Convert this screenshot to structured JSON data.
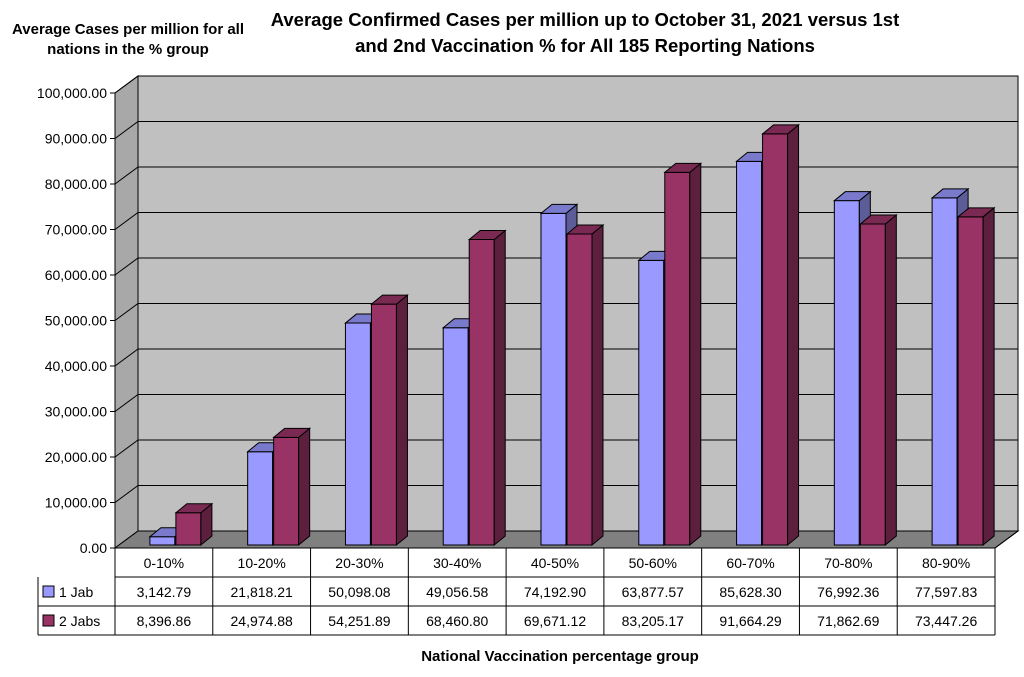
{
  "chart_data": {
    "type": "bar",
    "title": "Average Confirmed Cases per million up to October 31, 2021 versus 1st and 2nd Vaccination % for All 185 Reporting Nations",
    "ylabel": "Average Cases per million for all nations in the % group",
    "xlabel": "National Vaccination percentage group",
    "categories": [
      "0-10%",
      "10-20%",
      "20-30%",
      "30-40%",
      "40-50%",
      "50-60%",
      "60-70%",
      "70-80%",
      "80-90%"
    ],
    "series": [
      {
        "name": "1 Jab",
        "values": [
          3142.79,
          21818.21,
          50098.08,
          49056.58,
          74192.9,
          63877.57,
          85628.3,
          76992.36,
          77597.83
        ],
        "labels": [
          "3,142.79",
          "21,818.21",
          "50,098.08",
          "49,056.58",
          "74,192.90",
          "63,877.57",
          "85,628.30",
          "76,992.36",
          "77,597.83"
        ],
        "color": "#9999ff"
      },
      {
        "name": "2 Jabs",
        "values": [
          8396.86,
          24974.88,
          54251.89,
          68460.8,
          69671.12,
          83205.17,
          91664.29,
          71862.69,
          73447.26
        ],
        "labels": [
          "8,396.86",
          "24,974.88",
          "54,251.89",
          "68,460.80",
          "69,671.12",
          "83,205.17",
          "91,664.29",
          "71,862.69",
          "73,447.26"
        ],
        "color": "#993366"
      }
    ],
    "ylim": [
      0,
      100000
    ],
    "yticks": [
      "0.00",
      "10,000.00",
      "20,000.00",
      "30,000.00",
      "40,000.00",
      "50,000.00",
      "60,000.00",
      "70,000.00",
      "80,000.00",
      "90,000.00",
      "100,000.00"
    ],
    "grid": true,
    "data_table": true,
    "colors": {
      "wall": "#c0c0c0",
      "floor": "#808080",
      "grid": "#000000"
    }
  }
}
